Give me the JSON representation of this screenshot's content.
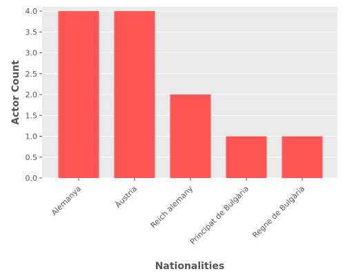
{
  "chart_data": {
    "type": "bar",
    "title": "",
    "xlabel": "Nationalities",
    "ylabel": "Actor Count",
    "categories": [
      "Alemanya",
      "Àustria",
      "Reich alemany",
      "Principat de Bulgària",
      "Regne de Bulgària"
    ],
    "values": [
      4,
      4,
      2,
      1,
      1
    ],
    "ylim": [
      0,
      4.1
    ],
    "yticks": [
      "0.0",
      "0.5",
      "1.0",
      "1.5",
      "2.0",
      "2.5",
      "3.0",
      "3.5",
      "4.0"
    ],
    "grid": true,
    "legend": "none",
    "colors": {
      "bar": "#ff5555",
      "plot_background": "#eaeaea",
      "grid": "#ffffff",
      "text": "#555555"
    }
  }
}
